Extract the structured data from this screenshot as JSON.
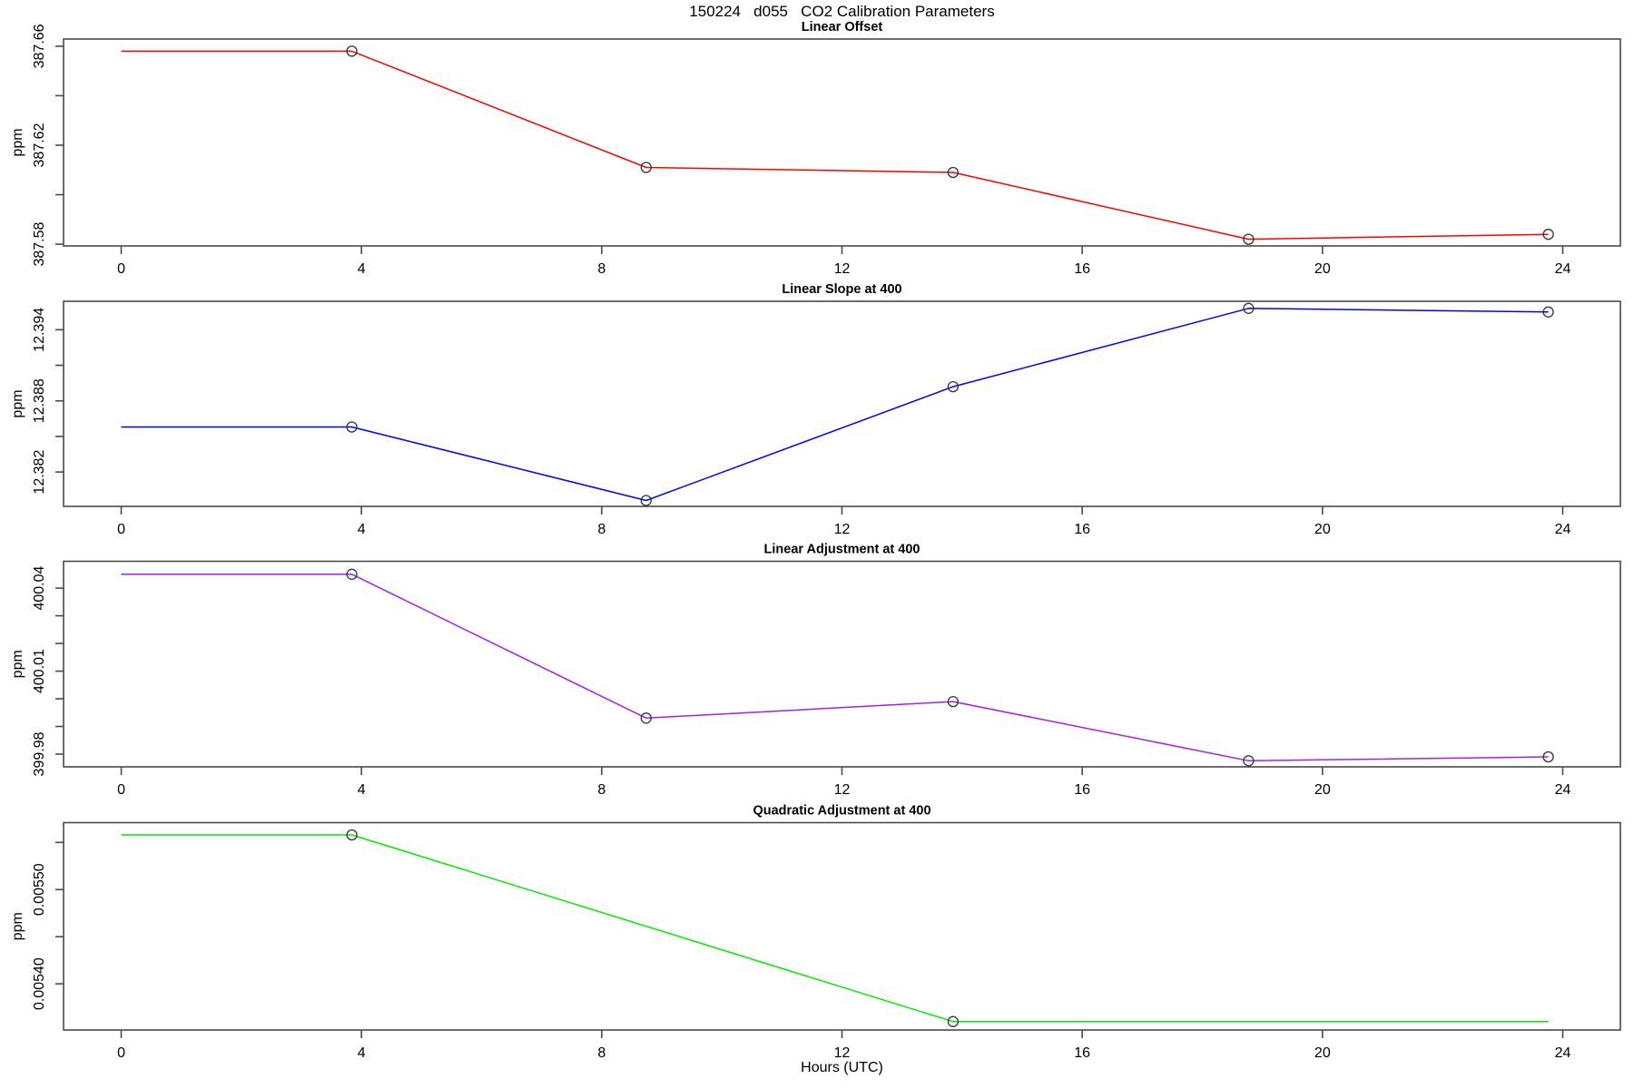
{
  "page": {
    "title": "150224   d055   CO2 Calibration Parameters",
    "background": "#ffffff"
  },
  "x_axis": {
    "label": "Hours (UTC)",
    "tick_values": [
      0,
      4,
      8,
      12,
      16,
      20,
      24
    ],
    "tick_labels": [
      "0",
      "4",
      "8",
      "12",
      "16",
      "20",
      "24"
    ],
    "xlim": [
      -0.96,
      24.96
    ]
  },
  "style": {
    "frame_color": "#4a4a4a",
    "tick_color": "#4a4a4a",
    "text_color": "#000000",
    "marker_color": "#333333"
  },
  "chart_data": [
    {
      "type": "line",
      "title": "Linear Offset",
      "ylabel": "ppm",
      "color": "#ff0000",
      "x": [
        0,
        3.84,
        8.74,
        13.85,
        18.77,
        23.76
      ],
      "y": [
        387.658,
        387.658,
        387.611,
        387.609,
        387.582,
        387.584
      ],
      "markers": [
        1,
        2,
        3,
        4,
        5
      ],
      "yticks": [
        {
          "v": 387.58,
          "label": "387.58"
        },
        {
          "v": 387.6,
          "label": ""
        },
        {
          "v": 387.62,
          "label": "387.62"
        },
        {
          "v": 387.64,
          "label": ""
        },
        {
          "v": 387.66,
          "label": "387.66"
        }
      ],
      "ylim": [
        387.5793,
        387.6629
      ]
    },
    {
      "type": "line",
      "title": "Linear Slope at 400",
      "ylabel": "ppm",
      "color": "#0000ff",
      "x": [
        0,
        3.84,
        8.74,
        13.85,
        18.77,
        23.76
      ],
      "y": [
        12.3858,
        12.3858,
        12.3796,
        12.3892,
        12.3958,
        12.3955
      ],
      "markers": [
        1,
        2,
        3,
        4,
        5
      ],
      "yticks": [
        {
          "v": 12.382,
          "label": "12.382"
        },
        {
          "v": 12.385,
          "label": ""
        },
        {
          "v": 12.388,
          "label": "12.388"
        },
        {
          "v": 12.391,
          "label": ""
        },
        {
          "v": 12.394,
          "label": "12.394"
        }
      ],
      "ylim": [
        12.3791,
        12.3964
      ]
    },
    {
      "type": "line",
      "title": "Linear Adjustment at 400",
      "ylabel": "ppm",
      "color": "#a020f0",
      "x": [
        0,
        3.84,
        8.74,
        13.85,
        18.77,
        23.76
      ],
      "y": [
        400.045,
        400.045,
        399.993,
        399.999,
        399.9776,
        399.979
      ],
      "markers": [
        1,
        2,
        3,
        4,
        5
      ],
      "yticks": [
        {
          "v": 399.98,
          "label": "399.98"
        },
        {
          "v": 399.99,
          "label": ""
        },
        {
          "v": 400.0,
          "label": ""
        },
        {
          "v": 400.01,
          "label": "400.01"
        },
        {
          "v": 400.02,
          "label": ""
        },
        {
          "v": 400.03,
          "label": ""
        },
        {
          "v": 400.04,
          "label": "400.04"
        }
      ],
      "ylim": [
        399.9754,
        400.0497
      ]
    },
    {
      "type": "line",
      "title": "Quadratic Adjustment at 400",
      "ylabel": "ppm",
      "color": "#00ee00",
      "x": [
        0,
        3.84,
        13.85,
        23.76
      ],
      "y": [
        0.005558,
        0.005558,
        0.00536,
        0.00536
      ],
      "markers": [
        1,
        2
      ],
      "yticks": [
        {
          "v": 0.0054,
          "label": "0.00540"
        },
        {
          "v": 0.00545,
          "label": ""
        },
        {
          "v": 0.0055,
          "label": "0.00550"
        },
        {
          "v": 0.00555,
          "label": ""
        }
      ],
      "ylim": [
        0.005351,
        0.005571
      ]
    }
  ]
}
